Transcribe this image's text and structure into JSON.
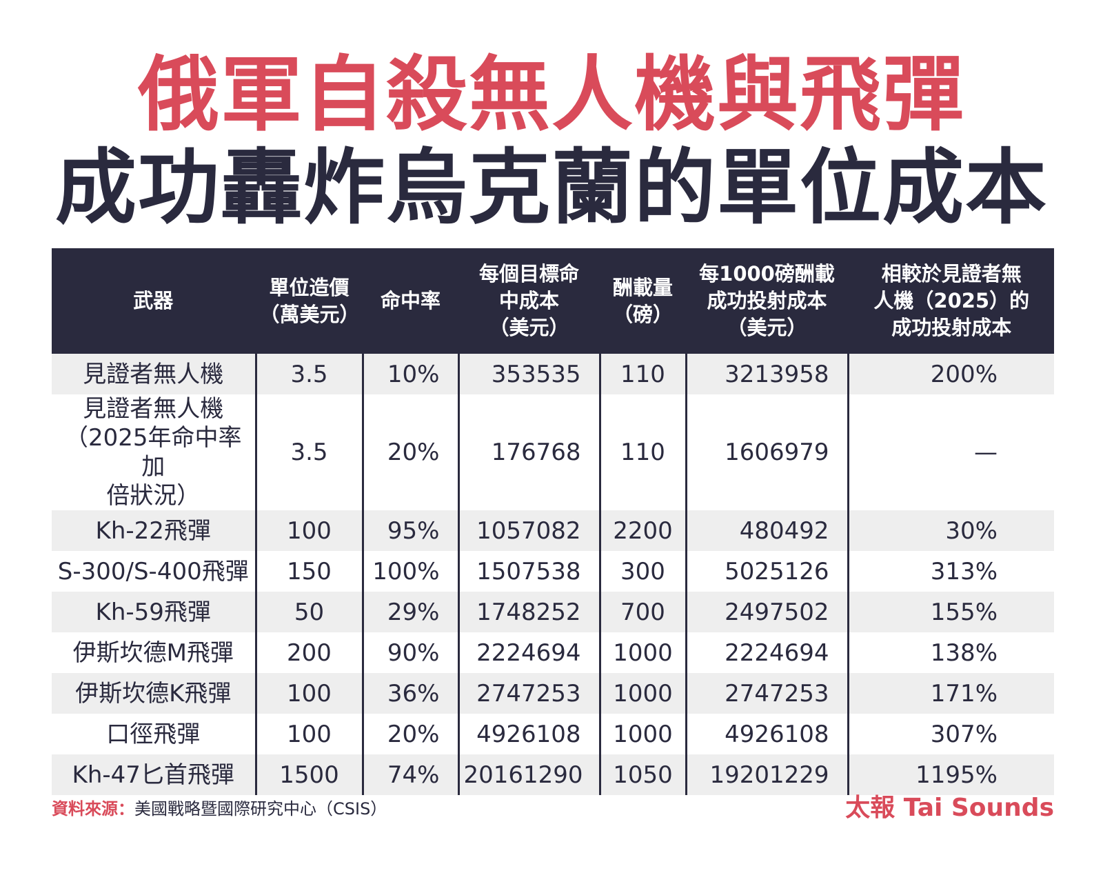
{
  "title_line1": "俄軍自殺無人機與飛彈",
  "title_line2": "成功轟炸烏克蘭的單位成本",
  "colors": {
    "accent": "#d94b5a",
    "dark": "#2a2a3e",
    "stripe": "#eeeeee"
  },
  "chart_data": {
    "type": "table",
    "title": "俄軍自殺無人機與飛彈成功轟炸烏克蘭的單位成本",
    "columns": [
      "武器",
      "單位造價\n（萬美元）",
      "命中率",
      "每個目標命\n中成本\n（美元）",
      "酬載量\n（磅）",
      "每1000磅酬載\n成功投射成本\n（美元）",
      "相較於見證者無\n人機（2025）的\n成功投射成本"
    ],
    "rows": [
      [
        "見證者無人機",
        "3.5",
        "10%",
        "353535",
        "110",
        "3213958",
        "200%"
      ],
      [
        "見證者無人機\n（2025年命中率加\n倍狀況）",
        "3.5",
        "20%",
        "176768",
        "110",
        "1606979",
        "—"
      ],
      [
        "Kh-22飛彈",
        "100",
        "95%",
        "1057082",
        "2200",
        "480492",
        "30%"
      ],
      [
        "S-300/S-400飛彈",
        "150",
        "100%",
        "1507538",
        "300",
        "5025126",
        "313%"
      ],
      [
        "Kh-59飛彈",
        "50",
        "29%",
        "1748252",
        "700",
        "2497502",
        "155%"
      ],
      [
        "伊斯坎德M飛彈",
        "200",
        "90%",
        "2224694",
        "1000",
        "2224694",
        "138%"
      ],
      [
        "伊斯坎德K飛彈",
        "100",
        "36%",
        "2747253",
        "1000",
        "2747253",
        "171%"
      ],
      [
        "口徑飛彈",
        "100",
        "20%",
        "4926108",
        "1000",
        "4926108",
        "307%"
      ],
      [
        "Kh-47匕首飛彈",
        "1500",
        "74%",
        "20161290",
        "1050",
        "19201229",
        "1195%"
      ]
    ]
  },
  "footer": {
    "source_label": "資料來源：",
    "source_text": "美國戰略暨國際研究中心（CSIS）",
    "brand": "太報 Tai Sounds"
  }
}
